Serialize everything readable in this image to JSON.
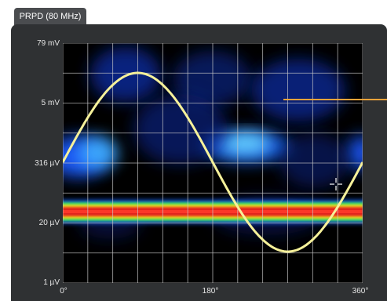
{
  "tab": {
    "label": "PRPD (80 MHz)"
  },
  "chart_data": {
    "type": "heatmap",
    "title": "PRPD (80 MHz)",
    "y_scale": "log",
    "y_ticks": [
      "79 mV",
      "5 mV",
      "316 µV",
      "20 µV",
      "1 µV"
    ],
    "x_ticks": [
      "0°",
      "180°",
      "360°"
    ],
    "x_range_deg": [
      0,
      360
    ],
    "grid": true,
    "overlay": {
      "type": "sine",
      "color": "#f6f19a",
      "cycles": 1
    },
    "hot_band_level": "≈30 µV",
    "diffuse_clusters": [
      {
        "phase_deg_range": [
          0,
          40
        ],
        "level": "≈600 µV"
      },
      {
        "phase_deg_range": [
          180,
          250
        ],
        "level": "≈600 µV"
      },
      {
        "phase_deg_range": [
          30,
          330
        ],
        "level": "≈5–20 mV"
      }
    ]
  },
  "colors": {
    "panel_bg": "#2f3133",
    "plot_bg": "#000000",
    "grid": "#c8c8c8",
    "sine": "#f6f19a",
    "pointer": "#f2a33a",
    "band_red": "#e0201a",
    "band_yellow": "#f6e81a",
    "band_green": "#2fe060",
    "band_blue": "#1e6bff"
  }
}
